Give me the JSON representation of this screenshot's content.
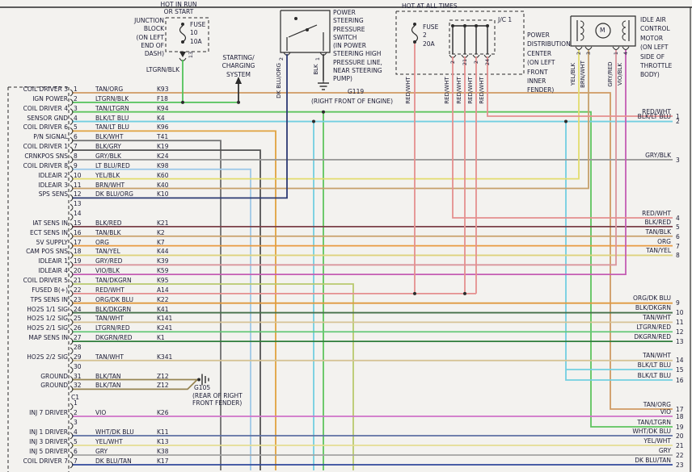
{
  "notes": {
    "hot_in_run": "HOT IN RUN\nOR START",
    "hot_at_all_times": "HOT AT ALL TIMES"
  },
  "components": {
    "junction_block": {
      "label": "JUNCTION\nBLOCK\n(ON LEFT\nEND OF\nDASH)",
      "fuse": "FUSE\n10\n10A",
      "terminal": "13",
      "feed_wire": "LTGRN/BLK"
    },
    "starting_charging": {
      "label": "STARTING/\nCHARGING\nSYSTEM"
    },
    "ps_switch": {
      "label": "POWER\nSTEERING\nPRESSURE\nSWITCH\n(IN POWER\nSTEERING HIGH\nPRESSURE LINE,\nNEAR STEERING\nPUMP)",
      "terminals": [
        "2",
        "1"
      ],
      "wires": [
        "DK BLU/ORG",
        "BLK"
      ]
    },
    "g119": {
      "id": "G119",
      "loc": "(RIGHT FRONT OF ENGINE)"
    },
    "pdc": {
      "label": "POWER\nDISTRIBUTION\nCENTER\n(ON LEFT\nFRONT\nINNER\nFENDER)",
      "fuse": "FUSE\n2\n20A",
      "jc_label": "J/C 1",
      "jc_terminals": [
        "2",
        "21",
        "2",
        "24"
      ],
      "wires": [
        "RED/WHT",
        "RED/WHT",
        "RED/WHT",
        "RED/WHT",
        "RED/WHT"
      ]
    },
    "iac": {
      "label": "IDLE AIR\nCONTROL\nMOTOR\n(ON LEFT\nSIDE OF\nTHROTTLE\nBODY)",
      "motor_letter": "M",
      "terminals": [
        "2",
        "3",
        "1",
        "4"
      ],
      "wires": [
        "YEL/BLK",
        "BRN/WHT",
        "GRY/RED",
        "VIO/BLK"
      ]
    },
    "g105": {
      "id": "G105",
      "loc": "(REAR OF RIGHT\nFRONT FENDER)"
    }
  },
  "left_connector": {
    "c1_label": "C1",
    "rows": [
      {
        "pin": "1",
        "label": "COIL DRIVER 3",
        "wire": "TAN/ORG",
        "circuit": "K93"
      },
      {
        "pin": "2",
        "label": "IGN POWER",
        "wire": "LTGRN/BLK",
        "circuit": "F18"
      },
      {
        "pin": "3",
        "label": "COIL DRIVER 4",
        "wire": "TAN/LTGRN",
        "circuit": "K94"
      },
      {
        "pin": "4",
        "label": "SENSOR GND",
        "wire": "BLK/LT BLU",
        "circuit": "K4"
      },
      {
        "pin": "5",
        "label": "COIL DRIVER 6",
        "wire": "TAN/LT BLU",
        "circuit": "K96"
      },
      {
        "pin": "6",
        "label": "P/N SIGNAL",
        "wire": "BLK/WHT",
        "circuit": "T41"
      },
      {
        "pin": "7",
        "label": "COIL DRIVER 1",
        "wire": "BLK/GRY",
        "circuit": "K19"
      },
      {
        "pin": "8",
        "label": "CRNKPOS SNS",
        "wire": "GRY/BLK",
        "circuit": "K24"
      },
      {
        "pin": "9",
        "label": "COIL DRIVER 8",
        "wire": "LT BLU/RED",
        "circuit": "K98"
      },
      {
        "pin": "10",
        "label": "IDLEAIR 2",
        "wire": "YEL/BLK",
        "circuit": "K60"
      },
      {
        "pin": "11",
        "label": "IDLEAIR 3",
        "wire": "BRN/WHT",
        "circuit": "K40"
      },
      {
        "pin": "12",
        "label": "SPS SENS",
        "wire": "DK BLU/ORG",
        "circuit": "K10"
      },
      {
        "pin": "13",
        "label": "",
        "wire": "",
        "circuit": ""
      },
      {
        "pin": "14",
        "label": "",
        "wire": "",
        "circuit": ""
      },
      {
        "pin": "15",
        "label": "IAT SENS IN",
        "wire": "BLK/RED",
        "circuit": "K21"
      },
      {
        "pin": "16",
        "label": "ECT SENS IN",
        "wire": "TAN/BLK",
        "circuit": "K2"
      },
      {
        "pin": "17",
        "label": "5V SUPPLY",
        "wire": "ORG",
        "circuit": "K7"
      },
      {
        "pin": "18",
        "label": "CAM POS SNS",
        "wire": "TAN/YEL",
        "circuit": "K44"
      },
      {
        "pin": "19",
        "label": "IDLEAIR 1",
        "wire": "GRY/RED",
        "circuit": "K39"
      },
      {
        "pin": "20",
        "label": "IDLEAIR 4",
        "wire": "VIO/BLK",
        "circuit": "K59"
      },
      {
        "pin": "21",
        "label": "COIL DRIVER 5",
        "wire": "TAN/DKGRN",
        "circuit": "K95"
      },
      {
        "pin": "22",
        "label": "FUSED B(+)",
        "wire": "RED/WHT",
        "circuit": "A14"
      },
      {
        "pin": "23",
        "label": "TPS SENS IN",
        "wire": "ORG/DK BLU",
        "circuit": "K22"
      },
      {
        "pin": "24",
        "label": "HO2S 1/1 SIG",
        "wire": "BLK/DKGRN",
        "circuit": "K41"
      },
      {
        "pin": "25",
        "label": "HO2S 1/2 SIG",
        "wire": "TAN/WHT",
        "circuit": "K141"
      },
      {
        "pin": "26",
        "label": "HO2S 2/1 SIG",
        "wire": "LTGRN/RED",
        "circuit": "K241"
      },
      {
        "pin": "27",
        "label": "MAP SENS IN",
        "wire": "DKGRN/RED",
        "circuit": "K1"
      },
      {
        "pin": "28",
        "label": "",
        "wire": "",
        "circuit": ""
      },
      {
        "pin": "29",
        "label": "HO2S 2/2 SIG",
        "wire": "TAN/WHT",
        "circuit": "K341"
      },
      {
        "pin": "30",
        "label": "",
        "wire": "",
        "circuit": ""
      },
      {
        "pin": "31",
        "label": "GROUND",
        "wire": "BLK/TAN",
        "circuit": "Z12"
      },
      {
        "pin": "32",
        "label": "GROUND",
        "wire": "BLK/TAN",
        "circuit": "Z12"
      }
    ],
    "c1_rows": [
      {
        "pin": "1",
        "label": "",
        "wire": "",
        "circuit": ""
      },
      {
        "pin": "2",
        "label": "INJ 7 DRIVER",
        "wire": "VIO",
        "circuit": "K26"
      },
      {
        "pin": "3",
        "label": "",
        "wire": "",
        "circuit": ""
      },
      {
        "pin": "4",
        "label": "INJ 1 DRIVER",
        "wire": "WHT/DK BLU",
        "circuit": "K11"
      },
      {
        "pin": "5",
        "label": "INJ 3 DRIVER",
        "wire": "YEL/WHT",
        "circuit": "K13"
      },
      {
        "pin": "6",
        "label": "INJ 5 DRIVER",
        "wire": "GRY",
        "circuit": "K38"
      },
      {
        "pin": "7",
        "label": "COIL DRIVER 7",
        "wire": "DK BLU/TAN",
        "circuit": "K17"
      }
    ]
  },
  "right_pins": [
    {
      "pin": "1",
      "wire": "RED/WHT"
    },
    {
      "pin": "2",
      "wire": "BLK/LT BLU"
    },
    {
      "pin": "3",
      "wire": "GRY/BLK"
    },
    {
      "pin": "4",
      "wire": "RED/WHT"
    },
    {
      "pin": "5",
      "wire": "BLK/RED"
    },
    {
      "pin": "6",
      "wire": "TAN/BLK"
    },
    {
      "pin": "7",
      "wire": "ORG"
    },
    {
      "pin": "8",
      "wire": "TAN/YEL"
    },
    {
      "pin": "9",
      "wire": "ORG/DK BLU"
    },
    {
      "pin": "10",
      "wire": "BLK/DKGRN"
    },
    {
      "pin": "11",
      "wire": "TAN/WHT"
    },
    {
      "pin": "12",
      "wire": "LTGRN/RED"
    },
    {
      "pin": "13",
      "wire": "DKGRN/RED"
    },
    {
      "pin": "14",
      "wire": "TAN/WHT"
    },
    {
      "pin": "15",
      "wire": "BLK/LT BLU"
    },
    {
      "pin": "16",
      "wire": "BLK/LT BLU"
    },
    {
      "pin": "17",
      "wire": "TAN/ORG"
    },
    {
      "pin": "18",
      "wire": "VIO"
    },
    {
      "pin": "19",
      "wire": "TAN/LTGRN"
    },
    {
      "pin": "20",
      "wire": "WHT/DK BLU"
    },
    {
      "pin": "21",
      "wire": "YEL/WHT"
    },
    {
      "pin": "22",
      "wire": "GRY"
    },
    {
      "pin": "23",
      "wire": "DK BLU/TAN"
    }
  ],
  "colors": {
    "TAN/ORG": "#cf9a63",
    "LTGRN/BLK": "#52c25a",
    "TAN/LTGRN": "#5ec45e",
    "BLK/LTBLU": "#72cfe0",
    "TAN/LTBLU": "#e0a23f",
    "BLK/WHT": "#6f6f6f",
    "BLK/GRY": "#525252",
    "GRY/BLK": "#9a9a9a",
    "LTBLU/RED": "#9fc9e8",
    "YEL/BLK": "#e3dc6e",
    "BRN/WHT": "#c6a06b",
    "DKBLU/ORG": "#2c3a73",
    "BLK/RED": "#7a4048",
    "TAN/BLK": "#c9a06a",
    "ORG": "#e89a40",
    "TAN/YEL": "#ded37e",
    "GRY/RED": "#d9959d",
    "VIO/BLK": "#c45cb4",
    "TAN/DKGRN": "#b9c96e",
    "RED/WHT": "#e58f8f",
    "ORG/DKBLU": "#e0993f",
    "BLK/DKGRN": "#46704a",
    "TAN/WHT": "#d6c396",
    "LTGRN/RED": "#66c878",
    "DKGRN/RED": "#2f7d3c",
    "BLK/TAN": "#968452",
    "VIO": "#cf72c8",
    "WHT/DKBLU": "#5d6fa3",
    "YEL/WHT": "#e4dd92",
    "GRY": "#a3a3a3",
    "DKBLU/TAN": "#31499c",
    "BLK": "#333333",
    "frame": "#2b2b2b"
  }
}
